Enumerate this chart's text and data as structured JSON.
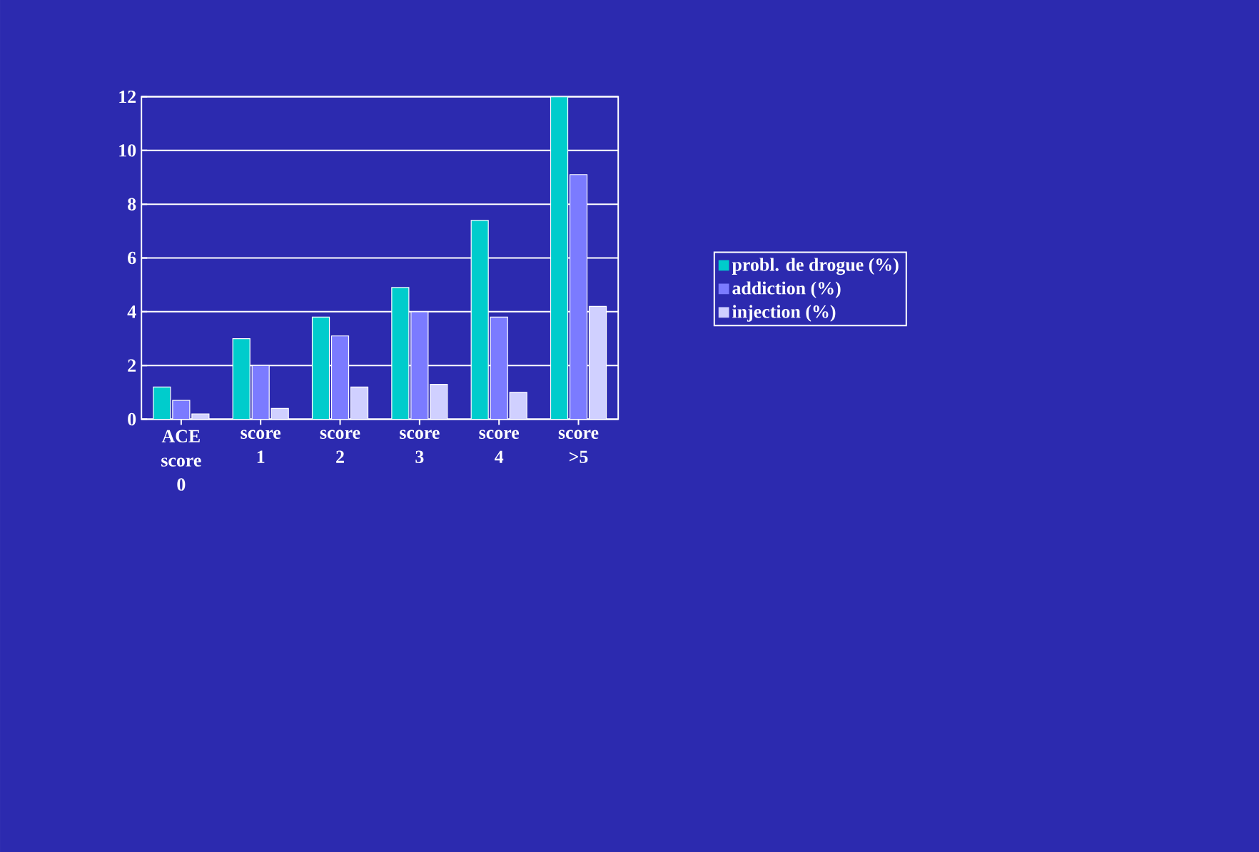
{
  "chart_data": {
    "type": "bar",
    "categories": [
      "ACE score 0",
      "score 1",
      "score 2",
      "score 3",
      "score 4",
      "score >5"
    ],
    "series": [
      {
        "name": "probl. de drogue (%)",
        "color": "#00cccc",
        "values": [
          1.2,
          3.0,
          3.8,
          4.9,
          7.4,
          12
        ]
      },
      {
        "name": "addiction (%)",
        "color": "#7b7bff",
        "values": [
          0.7,
          2.0,
          3.1,
          4.0,
          3.8,
          9.1
        ]
      },
      {
        "name": "injection (%)",
        "color": "#d0d0ff",
        "values": [
          0.2,
          0.4,
          1.2,
          1.3,
          1.0,
          4.2
        ]
      }
    ],
    "ylim": [
      0,
      12
    ],
    "yticks": [
      0,
      2,
      4,
      6,
      8,
      10,
      12
    ],
    "grid": "y",
    "legend": "right"
  }
}
